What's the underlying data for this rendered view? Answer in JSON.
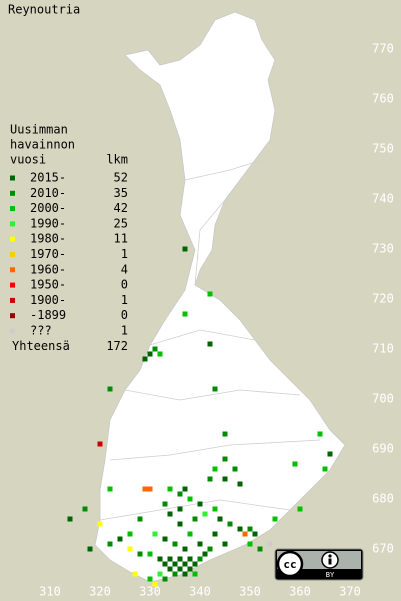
{
  "map": {
    "title": "Reynoutria",
    "legend_title": [
      "Uusimman",
      "havainnon",
      "vuosi"
    ],
    "count_header": "lkm",
    "categories": [
      {
        "name": "2015-",
        "color": "#006400",
        "count": 52
      },
      {
        "name": "2010-",
        "color": "#008c00",
        "count": 35
      },
      {
        "name": "2000-",
        "color": "#00c000",
        "count": 42
      },
      {
        "name": "1990-",
        "color": "#33ee33",
        "count": 25
      },
      {
        "name": "1980-",
        "color": "#ffff00",
        "count": 11
      },
      {
        "name": "1970-",
        "color": "#ffcc00",
        "count": 1
      },
      {
        "name": "1960-",
        "color": "#ff6600",
        "count": 4
      },
      {
        "name": "1950-",
        "color": "#ff0000",
        "count": 0
      },
      {
        "name": "1900-",
        "color": "#cc0000",
        "count": 1
      },
      {
        "name": "-1899",
        "color": "#990000",
        "count": 0
      },
      {
        "name": "???",
        "color": "#cccccc",
        "count": 1
      }
    ],
    "total_label": "Yhteensä",
    "total": 172,
    "xticks": [
      310,
      320,
      330,
      340,
      350,
      360,
      370
    ],
    "yticks": [
      670,
      680,
      690,
      700,
      710,
      720,
      730,
      740,
      750,
      760,
      770
    ],
    "points": {
      "x": [
        337,
        342,
        337,
        342,
        330,
        331,
        329,
        332,
        343,
        322,
        320,
        345,
        364,
        345,
        343,
        347,
        345,
        342,
        348,
        359,
        366,
        365,
        329,
        330,
        322,
        334,
        336,
        338,
        337,
        333,
        334,
        336,
        340,
        339,
        341,
        343,
        344,
        346,
        348,
        349,
        350,
        351,
        350,
        354,
        352,
        345,
        360,
        355,
        320,
        328,
        326,
        324,
        322,
        318,
        314,
        317,
        326,
        328,
        330,
        331,
        333,
        335,
        337,
        332,
        333,
        334,
        335,
        336,
        337,
        338,
        339,
        340,
        341,
        334,
        335,
        336,
        337,
        338,
        339,
        332,
        330,
        327,
        331,
        333,
        340,
        342,
        343,
        338,
        336
      ],
      "y": [
        730,
        721,
        717,
        711,
        709,
        710,
        708,
        709,
        702,
        702,
        691,
        693,
        693,
        688,
        686,
        686,
        684,
        684,
        683,
        687,
        689,
        686,
        682,
        682,
        682,
        682,
        681,
        680,
        682,
        679,
        677,
        678,
        679,
        676,
        677,
        678,
        676,
        675,
        674,
        673,
        674,
        673,
        671,
        671,
        670,
        671,
        678,
        676,
        675,
        676,
        673,
        672,
        671,
        670,
        676,
        678,
        670,
        669,
        669,
        673,
        672,
        671,
        670,
        668,
        667,
        668,
        667,
        668,
        667,
        668,
        667,
        668,
        669,
        666,
        665,
        666,
        665,
        666,
        665,
        665,
        664,
        665,
        663,
        664,
        671,
        670,
        673,
        673,
        675
      ],
      "category": [
        0,
        2,
        2,
        0,
        0,
        1,
        0,
        2,
        1,
        1,
        8,
        1,
        2,
        1,
        2,
        1,
        0,
        1,
        0,
        2,
        0,
        2,
        6,
        6,
        2,
        2,
        1,
        2,
        0,
        1,
        0,
        0,
        0,
        1,
        3,
        2,
        0,
        1,
        0,
        6,
        1,
        0,
        2,
        10,
        1,
        0,
        2,
        2,
        4,
        1,
        2,
        0,
        1,
        0,
        0,
        1,
        4,
        1,
        2,
        3,
        0,
        1,
        0,
        0,
        0,
        0,
        0,
        0,
        0,
        0,
        0,
        1,
        0,
        0,
        1,
        0,
        0,
        0,
        2,
        3,
        2,
        4,
        4,
        1,
        0,
        1,
        0,
        2,
        0
      ]
    }
  },
  "license": {
    "icon": "cc",
    "label": "BY"
  }
}
